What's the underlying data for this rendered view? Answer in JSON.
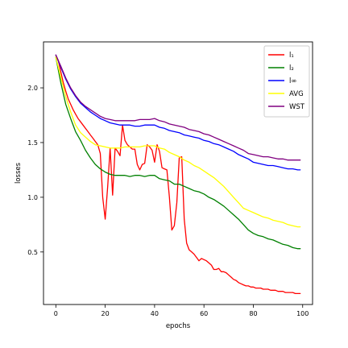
{
  "chart_data": {
    "type": "line",
    "xlabel": "epochs",
    "ylabel": "losses",
    "xlim": [
      -5,
      104
    ],
    "ylim": [
      0.02,
      2.42
    ],
    "x_ticks": [
      0,
      20,
      40,
      60,
      80,
      100
    ],
    "y_ticks": [
      0.5,
      1.0,
      1.5,
      2.0
    ],
    "x_tick_labels": [
      "0",
      "20",
      "40",
      "60",
      "80",
      "100"
    ],
    "y_tick_labels": [
      "0.5",
      "1.0",
      "1.5",
      "2.0"
    ],
    "grid": false,
    "legend_position": "top-right",
    "series": [
      {
        "name": "l₁",
        "color": "#ff0000",
        "x": [
          0,
          1,
          2,
          3,
          4,
          5,
          6,
          7,
          8,
          9,
          10,
          11,
          12,
          13,
          14,
          15,
          16,
          17,
          18,
          19,
          20,
          21,
          22,
          23,
          24,
          25,
          26,
          27,
          28,
          29,
          30,
          31,
          32,
          33,
          34,
          35,
          36,
          37,
          38,
          39,
          40,
          41,
          42,
          43,
          44,
          45,
          46,
          47,
          48,
          49,
          50,
          51,
          52,
          53,
          54,
          55,
          56,
          57,
          58,
          59,
          60,
          61,
          62,
          63,
          64,
          65,
          66,
          67,
          68,
          69,
          70,
          71,
          72,
          73,
          74,
          75,
          76,
          77,
          78,
          79,
          80,
          81,
          82,
          83,
          84,
          85,
          86,
          87,
          88,
          89,
          90,
          91,
          92,
          93,
          94,
          95,
          96,
          97,
          98,
          99
        ],
        "values": [
          2.3,
          2.25,
          2.15,
          2.05,
          1.97,
          1.9,
          1.85,
          1.8,
          1.76,
          1.72,
          1.69,
          1.66,
          1.63,
          1.6,
          1.57,
          1.54,
          1.51,
          1.48,
          1.4,
          1.0,
          0.8,
          1.1,
          1.45,
          1.02,
          1.45,
          1.42,
          1.38,
          1.66,
          1.52,
          1.48,
          1.46,
          1.44,
          1.44,
          1.3,
          1.25,
          1.3,
          1.31,
          1.48,
          1.46,
          1.43,
          1.32,
          1.48,
          1.42,
          1.27,
          1.26,
          1.25,
          1.0,
          0.7,
          0.74,
          0.95,
          1.36,
          1.37,
          0.8,
          0.58,
          0.52,
          0.5,
          0.48,
          0.45,
          0.42,
          0.44,
          0.43,
          0.42,
          0.4,
          0.38,
          0.34,
          0.34,
          0.35,
          0.32,
          0.32,
          0.31,
          0.29,
          0.27,
          0.25,
          0.24,
          0.22,
          0.21,
          0.2,
          0.19,
          0.19,
          0.18,
          0.18,
          0.17,
          0.17,
          0.17,
          0.16,
          0.16,
          0.16,
          0.15,
          0.15,
          0.15,
          0.14,
          0.14,
          0.14,
          0.13,
          0.13,
          0.13,
          0.13,
          0.12,
          0.12,
          0.12
        ]
      },
      {
        "name": "l₂",
        "color": "#008000",
        "x": [
          0,
          2,
          4,
          6,
          8,
          10,
          12,
          14,
          16,
          18,
          20,
          22,
          24,
          26,
          28,
          30,
          32,
          34,
          36,
          38,
          40,
          42,
          44,
          46,
          48,
          50,
          52,
          54,
          56,
          58,
          60,
          62,
          64,
          66,
          68,
          70,
          72,
          74,
          76,
          78,
          80,
          82,
          84,
          86,
          88,
          90,
          92,
          94,
          96,
          98,
          99
        ],
        "values": [
          2.28,
          2.05,
          1.85,
          1.72,
          1.6,
          1.52,
          1.43,
          1.36,
          1.3,
          1.26,
          1.23,
          1.21,
          1.2,
          1.2,
          1.2,
          1.19,
          1.2,
          1.2,
          1.19,
          1.2,
          1.2,
          1.17,
          1.16,
          1.15,
          1.12,
          1.12,
          1.1,
          1.08,
          1.06,
          1.05,
          1.03,
          1.0,
          0.98,
          0.95,
          0.92,
          0.88,
          0.84,
          0.8,
          0.75,
          0.7,
          0.67,
          0.65,
          0.64,
          0.62,
          0.61,
          0.59,
          0.57,
          0.56,
          0.54,
          0.53,
          0.53
        ]
      },
      {
        "name": "l∞",
        "color": "#0000ff",
        "x": [
          0,
          2,
          4,
          6,
          8,
          10,
          12,
          14,
          16,
          18,
          20,
          22,
          24,
          26,
          28,
          30,
          32,
          34,
          36,
          38,
          40,
          42,
          44,
          46,
          48,
          50,
          52,
          54,
          56,
          58,
          60,
          62,
          64,
          66,
          68,
          70,
          72,
          74,
          76,
          78,
          80,
          82,
          84,
          86,
          88,
          90,
          92,
          94,
          96,
          98,
          99
        ],
        "values": [
          2.3,
          2.19,
          2.08,
          1.99,
          1.92,
          1.86,
          1.82,
          1.78,
          1.75,
          1.72,
          1.7,
          1.68,
          1.67,
          1.66,
          1.66,
          1.66,
          1.65,
          1.65,
          1.66,
          1.66,
          1.66,
          1.64,
          1.63,
          1.61,
          1.6,
          1.59,
          1.57,
          1.56,
          1.55,
          1.54,
          1.52,
          1.51,
          1.49,
          1.48,
          1.46,
          1.44,
          1.42,
          1.39,
          1.37,
          1.35,
          1.32,
          1.31,
          1.3,
          1.29,
          1.29,
          1.28,
          1.27,
          1.26,
          1.26,
          1.25,
          1.25
        ]
      },
      {
        "name": "AVG",
        "color": "#ffff00",
        "x": [
          0,
          2,
          4,
          6,
          8,
          10,
          12,
          14,
          16,
          18,
          20,
          22,
          24,
          26,
          28,
          30,
          32,
          34,
          36,
          38,
          40,
          42,
          44,
          46,
          48,
          50,
          52,
          54,
          56,
          58,
          60,
          62,
          64,
          66,
          68,
          70,
          72,
          74,
          76,
          78,
          80,
          82,
          84,
          86,
          88,
          90,
          92,
          94,
          96,
          98,
          99
        ],
        "values": [
          2.28,
          2.1,
          1.92,
          1.78,
          1.66,
          1.59,
          1.55,
          1.51,
          1.48,
          1.47,
          1.46,
          1.45,
          1.45,
          1.45,
          1.46,
          1.46,
          1.46,
          1.46,
          1.47,
          1.47,
          1.47,
          1.45,
          1.44,
          1.41,
          1.39,
          1.37,
          1.34,
          1.32,
          1.29,
          1.27,
          1.24,
          1.21,
          1.18,
          1.14,
          1.1,
          1.05,
          1.0,
          0.95,
          0.9,
          0.88,
          0.86,
          0.84,
          0.82,
          0.81,
          0.79,
          0.78,
          0.77,
          0.75,
          0.74,
          0.73,
          0.73
        ]
      },
      {
        "name": "WST",
        "color": "#800080",
        "x": [
          0,
          2,
          4,
          6,
          8,
          10,
          12,
          14,
          16,
          18,
          20,
          22,
          24,
          26,
          28,
          30,
          32,
          34,
          36,
          38,
          40,
          42,
          44,
          46,
          48,
          50,
          52,
          54,
          56,
          58,
          60,
          62,
          64,
          66,
          68,
          70,
          72,
          74,
          76,
          78,
          80,
          82,
          84,
          86,
          88,
          90,
          92,
          94,
          96,
          98,
          99
        ],
        "values": [
          2.3,
          2.2,
          2.09,
          2.0,
          1.93,
          1.87,
          1.83,
          1.8,
          1.77,
          1.74,
          1.72,
          1.71,
          1.7,
          1.7,
          1.7,
          1.7,
          1.7,
          1.71,
          1.71,
          1.71,
          1.72,
          1.7,
          1.69,
          1.67,
          1.66,
          1.65,
          1.64,
          1.62,
          1.61,
          1.6,
          1.58,
          1.57,
          1.55,
          1.53,
          1.51,
          1.49,
          1.47,
          1.45,
          1.43,
          1.4,
          1.39,
          1.38,
          1.37,
          1.37,
          1.36,
          1.35,
          1.35,
          1.34,
          1.34,
          1.34,
          1.34
        ]
      }
    ]
  }
}
